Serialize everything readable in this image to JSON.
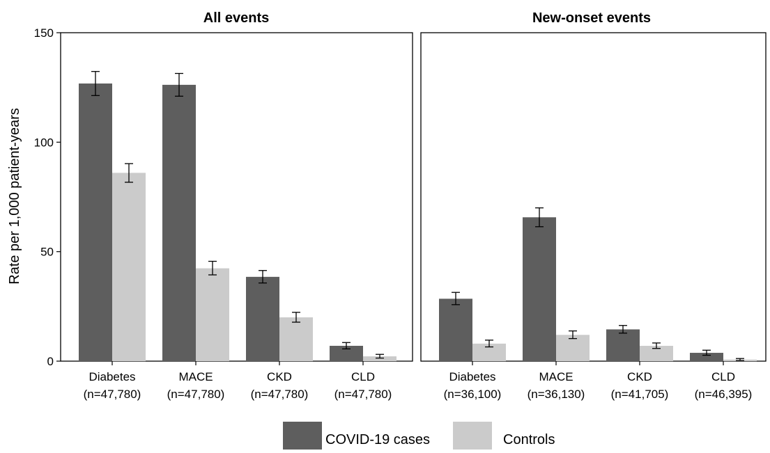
{
  "chart_data": {
    "type": "bar",
    "ylabel": "Rate per 1,000 patient-years",
    "ylim": [
      0,
      150
    ],
    "yticks": [
      0,
      50,
      100,
      150
    ],
    "colors": {
      "COVID-19 cases": "#5e5e5e",
      "Controls": "#cbcbcb"
    },
    "legend": {
      "position": "bottom",
      "entries": [
        "COVID-19 cases",
        "Controls"
      ]
    },
    "panels": [
      {
        "title": "All events",
        "categories": [
          "Diabetes",
          "MACE",
          "CKD",
          "CLD"
        ],
        "category_n": [
          "(n=47,780)",
          "(n=47,780)",
          "(n=47,780)",
          "(n=47,780)"
        ],
        "series": [
          {
            "name": "COVID-19 cases",
            "values": [
              126.8,
              126.2,
              38.5,
              7.0
            ],
            "ci_low": [
              121.3,
              121.0,
              35.7,
              5.6
            ],
            "ci_high": [
              132.3,
              131.4,
              41.4,
              8.5
            ]
          },
          {
            "name": "Controls",
            "values": [
              86.0,
              42.4,
              20.0,
              2.2
            ],
            "ci_low": [
              81.7,
              39.4,
              17.8,
              1.4
            ],
            "ci_high": [
              90.2,
              45.6,
              22.3,
              3.1
            ]
          }
        ]
      },
      {
        "title": "New-onset events",
        "categories": [
          "Diabetes",
          "MACE",
          "CKD",
          "CLD"
        ],
        "category_n": [
          "(n=36,100)",
          "(n=36,130)",
          "(n=41,705)",
          "(n=46,395)"
        ],
        "series": [
          {
            "name": "COVID-19 cases",
            "values": [
              28.5,
              65.7,
              14.5,
              3.8
            ],
            "ci_low": [
              25.8,
              61.4,
              12.8,
              2.7
            ],
            "ci_high": [
              31.4,
              70.0,
              16.3,
              5.0
            ]
          },
          {
            "name": "Controls",
            "values": [
              8.0,
              12.0,
              7.0,
              0.7
            ],
            "ci_low": [
              6.5,
              10.3,
              5.8,
              0.3
            ],
            "ci_high": [
              9.6,
              13.8,
              8.3,
              1.2
            ]
          }
        ]
      }
    ]
  }
}
